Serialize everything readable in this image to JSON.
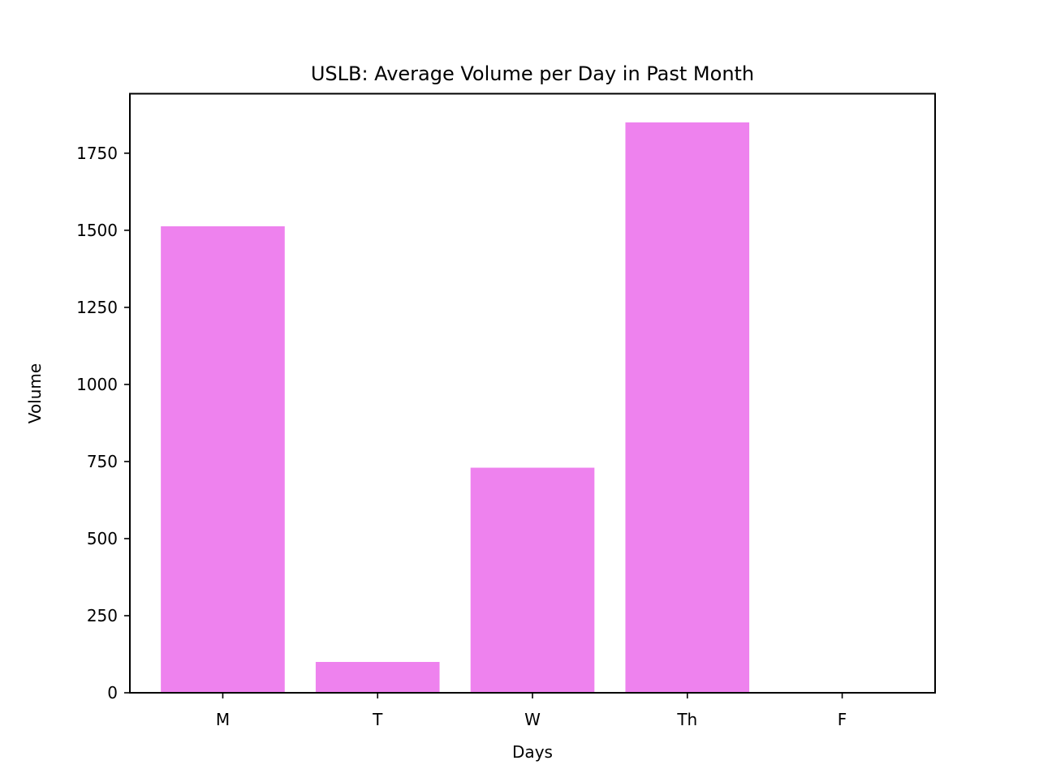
{
  "chart_data": {
    "type": "bar",
    "title": "USLB: Average Volume per Day in Past Month",
    "xlabel": "Days",
    "ylabel": "Volume",
    "categories": [
      "M",
      "T",
      "W",
      "Th",
      "F"
    ],
    "values": [
      1513,
      100,
      730,
      1850,
      0
    ],
    "ylim": [
      0,
      1943
    ],
    "yticks": [
      0,
      250,
      500,
      750,
      1000,
      1250,
      1500,
      1750
    ],
    "bar_color": "#ee82ee",
    "grid": false,
    "legend": "none"
  }
}
